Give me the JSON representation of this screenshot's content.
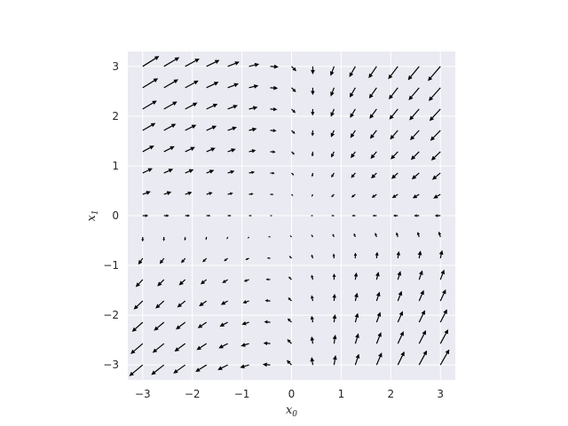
{
  "chart_data": {
    "type": "quiver",
    "title": "",
    "xlabel": "x",
    "xlabel_sub": "0",
    "ylabel": "x",
    "ylabel_sub": "1",
    "xlim": [
      -3.3,
      3.3
    ],
    "ylim": [
      -3.3,
      3.3
    ],
    "xticks": [
      -3,
      -2,
      -1,
      0,
      1,
      2,
      3
    ],
    "yticks": [
      -3,
      -2,
      -1,
      0,
      1,
      2,
      3
    ],
    "xtick_labels": [
      "−3",
      "−2",
      "−1",
      "0",
      "1",
      "2",
      "3"
    ],
    "ytick_labels": [
      "−3",
      "−2",
      "−1",
      "0",
      "1",
      "2",
      "3"
    ],
    "grid": true,
    "background_color": "#eaeaf2",
    "arrow_color": "#000000",
    "grid_size": 15,
    "x_range": [
      -3,
      3
    ],
    "y_range": [
      -3,
      3
    ],
    "vector_field": "u = x1*(1 - 2*x0) - x0 ; v = -x1*(1 + 2*x0) ; arrows normalized, length grows with magnitude"
  }
}
